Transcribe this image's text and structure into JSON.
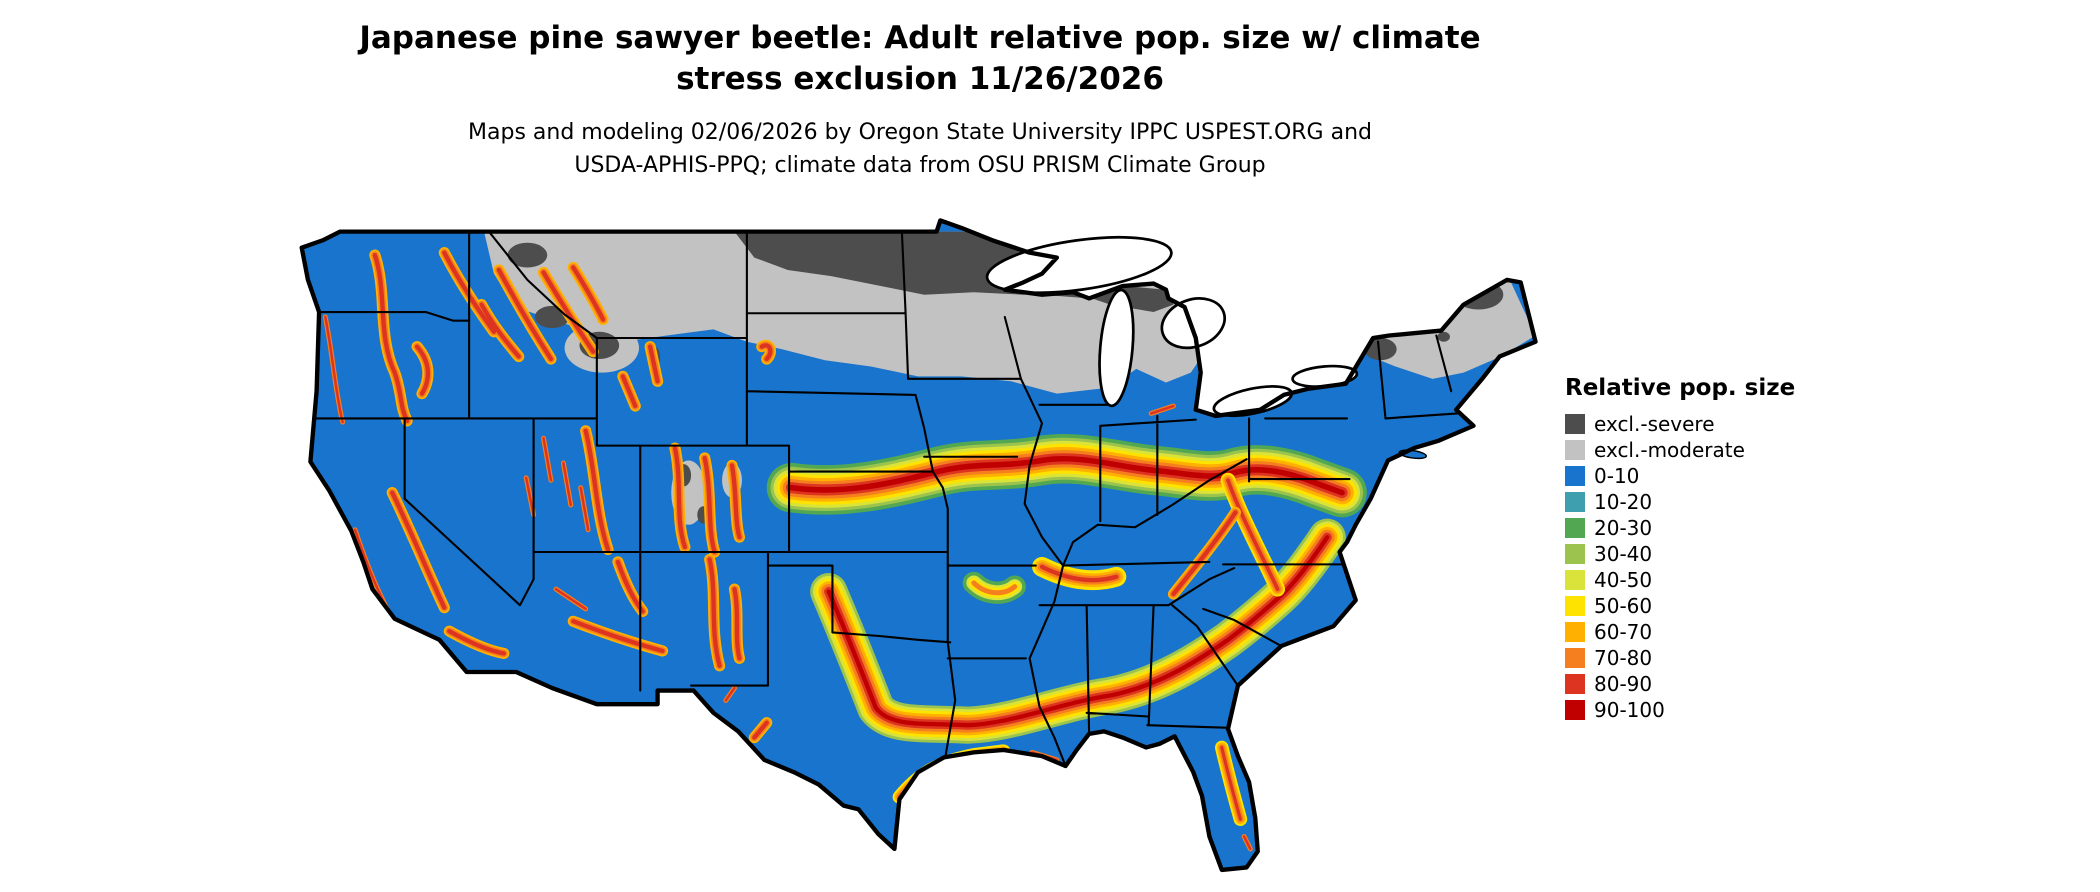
{
  "header": {
    "title_line1": "Japanese pine sawyer beetle: Adult relative pop. size w/ climate",
    "title_line2": "stress exclusion 11/26/2026",
    "subtitle_line1": "Maps and modeling 02/06/2026 by Oregon State University IPPC USPEST.ORG and",
    "subtitle_line2": "USDA-APHIS-PPQ; climate data from OSU PRISM Climate Group"
  },
  "map": {
    "description": "Contiguous United States raster map of adult relative population size with climate stress exclusion",
    "base_color": "#1874CD"
  },
  "legend": {
    "title": "Relative pop. size",
    "items": [
      {
        "label": "excl.-severe",
        "color": "#4D4D4D"
      },
      {
        "label": "excl.-moderate",
        "color": "#C2C2C2"
      },
      {
        "label": "0-10",
        "color": "#1874CD"
      },
      {
        "label": "10-20",
        "color": "#3EA0AE"
      },
      {
        "label": "20-30",
        "color": "#52A852"
      },
      {
        "label": "30-40",
        "color": "#9BC34E"
      },
      {
        "label": "40-50",
        "color": "#D9E339"
      },
      {
        "label": "50-60",
        "color": "#FFE300"
      },
      {
        "label": "60-70",
        "color": "#FFB000"
      },
      {
        "label": "70-80",
        "color": "#F57E1F"
      },
      {
        "label": "80-90",
        "color": "#DC3420"
      },
      {
        "label": "90-100",
        "color": "#C00000"
      }
    ]
  }
}
